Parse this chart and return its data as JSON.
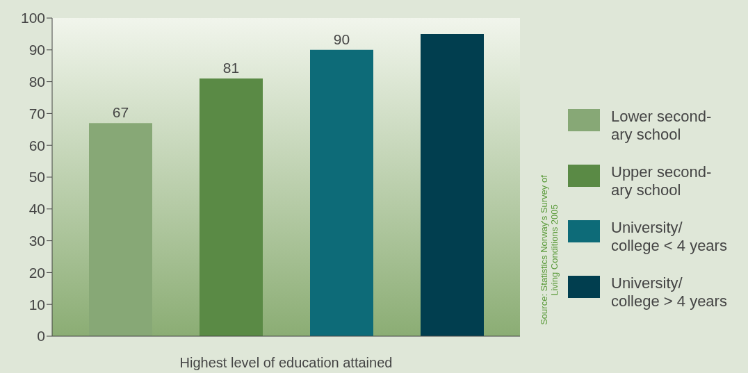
{
  "chart_data": {
    "type": "bar",
    "xlabel": "Highest level of education attained",
    "categories": [
      null
    ],
    "series": [
      {
        "name": "Lower second-\nary school",
        "color": "#87a876",
        "values": [
          67
        ],
        "value_labels": [
          "67"
        ]
      },
      {
        "name": "Upper second-\nary school",
        "color": "#5a8a45",
        "values": [
          81
        ],
        "value_labels": [
          "81"
        ]
      },
      {
        "name": "University/\ncollege < 4 years",
        "color": "#0d6b78",
        "values": [
          90
        ],
        "value_labels": [
          "90"
        ]
      },
      {
        "name": "University/\ncollege > 4 years",
        "color": "#013e4f",
        "values": [
          95
        ],
        "value_labels": [
          null
        ]
      }
    ],
    "ylim": [
      0,
      100
    ],
    "yticks": [
      0,
      10,
      20,
      30,
      40,
      50,
      60,
      70,
      80,
      90,
      100
    ],
    "legend": "right",
    "annotations": [
      "Source: Statistics Norway's Survey of Living Conditions 2005"
    ]
  }
}
